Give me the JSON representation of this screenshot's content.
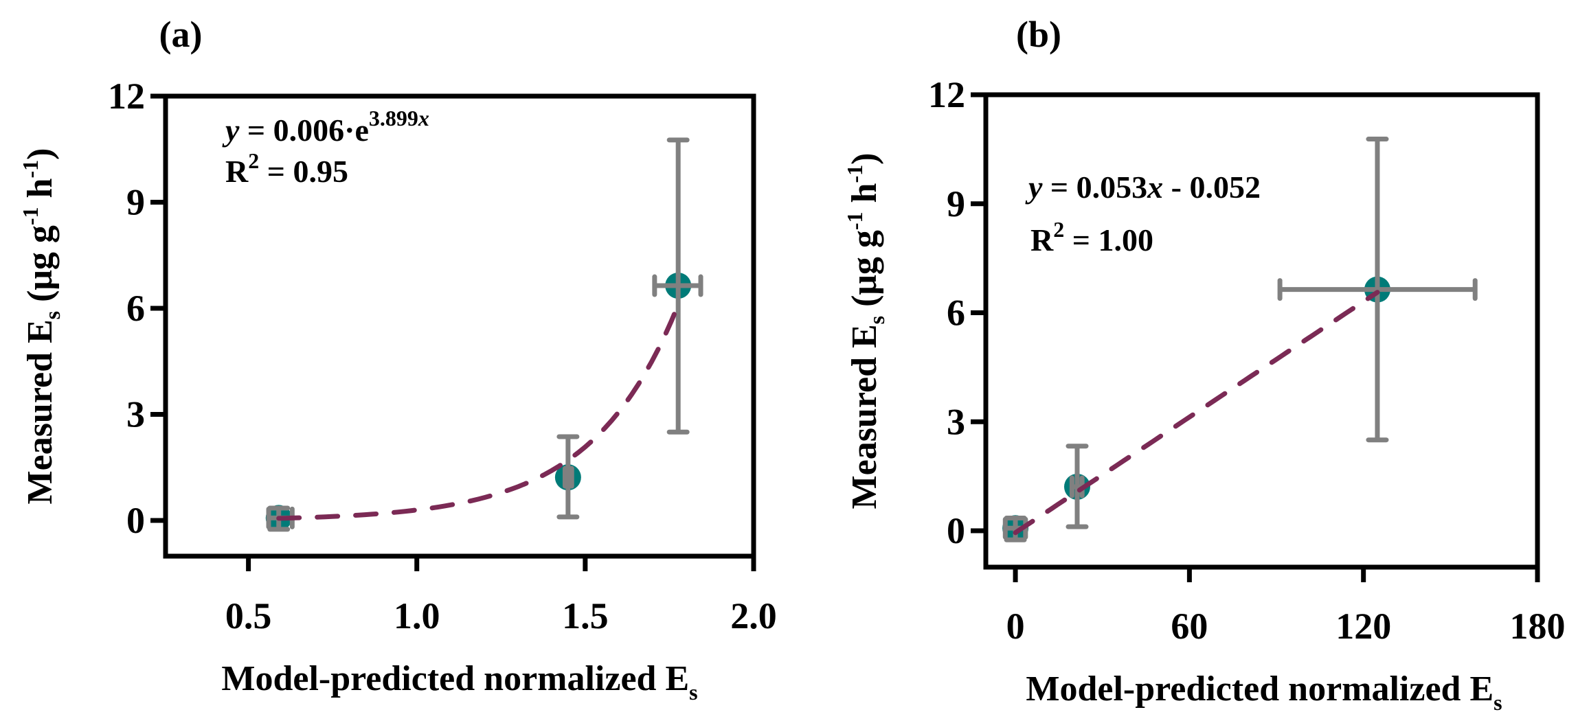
{
  "chart_data": [
    {
      "type": "scatter",
      "panel_label": "(a)",
      "xlabel": "Model-predicted normalized E",
      "xlabel_sub": "s",
      "ylabel": "Measured E",
      "ylabel_sub": "s",
      "ylabel_units": " (μg g",
      "ylabel_units_sup1": "-1",
      "ylabel_units_mid": " h",
      "ylabel_units_sup2": "-1",
      "ylabel_units_end": ")",
      "xlim": [
        0.254,
        2.0
      ],
      "ylim": [
        -1.0,
        12
      ],
      "xticks": [
        0.5,
        1.0,
        1.5,
        2.0
      ],
      "xtick_labels": [
        "0.5",
        "1.0",
        "1.5",
        "2.0"
      ],
      "yticks": [
        0,
        3,
        6,
        9,
        12
      ],
      "ytick_labels": [
        "0",
        "3",
        "6",
        "9",
        "12"
      ],
      "points": [
        {
          "x": 0.59,
          "y": 0.07,
          "xerr": [
            0.56,
            0.63
          ],
          "yerr": [
            -0.25,
            0.35
          ]
        },
        {
          "x": 1.449,
          "y": 1.22,
          "xerr": [
            1.44,
            1.46
          ],
          "yerr": [
            0.1,
            2.37
          ]
        },
        {
          "x": 1.776,
          "y": 6.64,
          "xerr": [
            1.706,
            1.843
          ],
          "yerr": [
            2.5,
            10.76
          ]
        }
      ],
      "fit": {
        "type": "exponential",
        "a": 0.006,
        "b": 3.899,
        "x_range": [
          0.59,
          1.776
        ]
      },
      "equation": {
        "y_var": "y",
        "text": " = 0.006·e",
        "exp": "3.899",
        "exp_var": "x"
      },
      "r2": {
        "label": "R",
        "sup": "2",
        "text": " = 0.95"
      },
      "marker_color": "#007b78",
      "errorbar_color": "#808080",
      "fit_color": "#7b2a55",
      "grid": false
    },
    {
      "type": "scatter",
      "panel_label": "(b)",
      "xlabel": "Model-predicted normalized E",
      "xlabel_sub": "s",
      "ylabel": "Measured E",
      "ylabel_sub": "s",
      "ylabel_units": " (μg g",
      "ylabel_units_sup1": "-1",
      "ylabel_units_mid": " h",
      "ylabel_units_sup2": "-1",
      "ylabel_units_end": ")",
      "xlim": [
        -10.2,
        180
      ],
      "ylim": [
        -1.0,
        12
      ],
      "xticks": [
        0,
        60,
        120,
        180
      ],
      "xtick_labels": [
        "0",
        "60",
        "120",
        "180"
      ],
      "yticks": [
        0,
        3,
        6,
        9,
        12
      ],
      "ytick_labels": [
        "0",
        "3",
        "6",
        "9",
        "12"
      ],
      "points": [
        {
          "x": 0.0,
          "y": 0.07,
          "xerr": [
            -3.5,
            3.5
          ],
          "yerr": [
            -0.25,
            0.35
          ]
        },
        {
          "x": 21.3,
          "y": 1.21,
          "xerr": [
            19.5,
            23.0
          ],
          "yerr": [
            0.11,
            2.33
          ]
        },
        {
          "x": 124.8,
          "y": 6.64,
          "xerr": [
            91.2,
            158.5
          ],
          "yerr": [
            2.5,
            10.78
          ]
        }
      ],
      "fit": {
        "type": "linear",
        "slope": 0.053,
        "intercept": -0.052,
        "x_range": [
          0.0,
          124.8
        ]
      },
      "equation": {
        "y_var": "y",
        "text": " = 0.053",
        "x_var": "x",
        "tail": " - 0.052"
      },
      "r2": {
        "label": "R",
        "sup": "2",
        "text": " = 1.00"
      },
      "marker_color": "#007b78",
      "errorbar_color": "#808080",
      "fit_color": "#7b2a55",
      "grid": false
    }
  ]
}
